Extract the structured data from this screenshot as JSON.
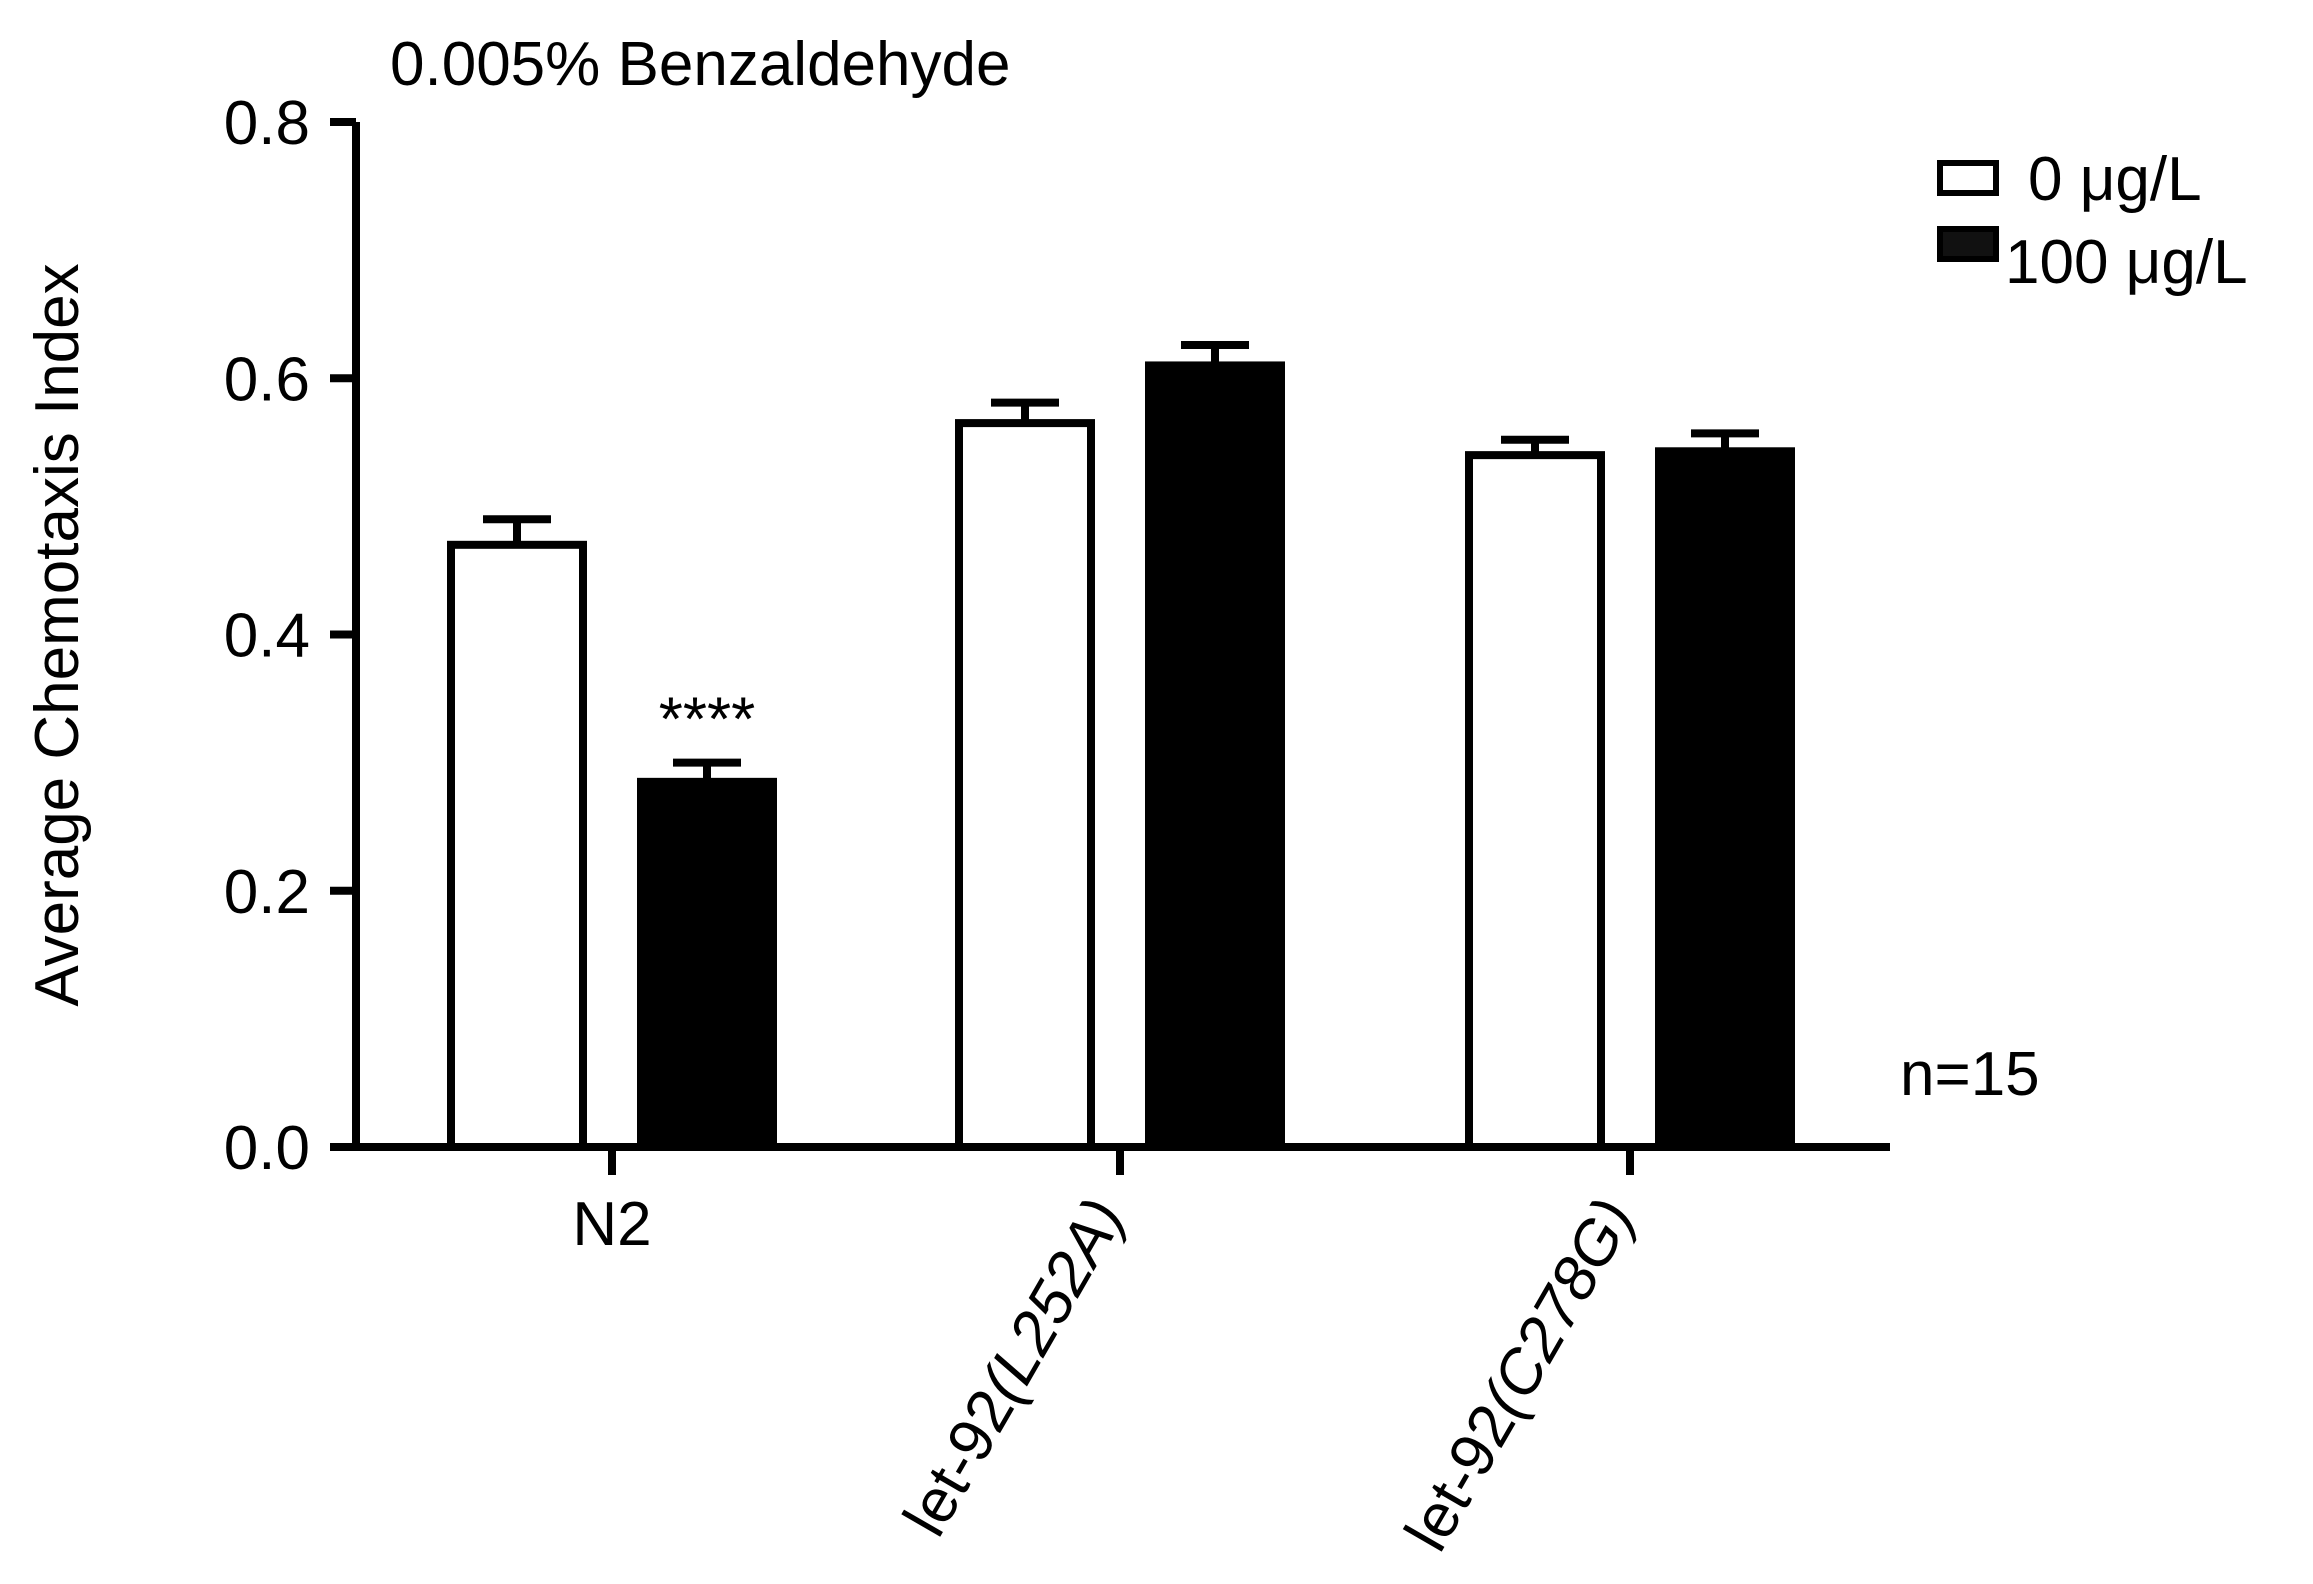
{
  "chart_data": {
    "type": "bar",
    "title": "0.005% Benzaldehyde",
    "xlabel": "",
    "ylabel": "Average Chemotaxis Index",
    "ylim": [
      0,
      0.8
    ],
    "yticks": [
      "0.0",
      "0.2",
      "0.4",
      "0.6",
      "0.8"
    ],
    "categories": [
      "N2",
      "let-92(L252A)",
      "let-92(C278G)"
    ],
    "series": [
      {
        "name": "0 μg/L",
        "color": "#ffffff",
        "values": [
          0.47,
          0.565,
          0.54
        ],
        "errors": [
          0.02,
          0.016,
          0.012
        ]
      },
      {
        "name": "100 μg/L",
        "color": "#000000",
        "values": [
          0.285,
          0.61,
          0.543
        ],
        "errors": [
          0.015,
          0.016,
          0.014
        ]
      }
    ],
    "annotations": [
      {
        "text": "****",
        "category": "N2",
        "series": "100 μg/L"
      },
      {
        "text": "n=15"
      }
    ],
    "grid": false,
    "legend": "top-right"
  }
}
